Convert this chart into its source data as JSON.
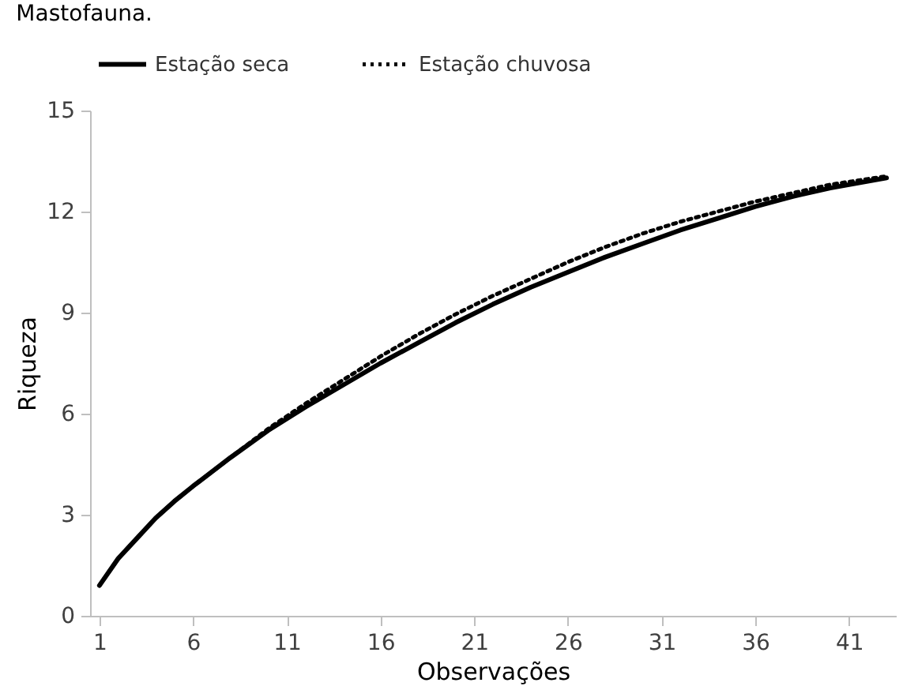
{
  "chart_data": {
    "type": "line",
    "title": "Mastofauna.",
    "xlabel": "Observações",
    "ylabel": "Riqueza",
    "x": [
      1,
      2,
      3,
      4,
      5,
      6,
      8,
      10,
      12,
      14,
      16,
      18,
      20,
      22,
      24,
      26,
      28,
      30,
      32,
      34,
      36,
      38,
      40,
      43
    ],
    "series": [
      {
        "name": "Estação seca",
        "color": "#000000",
        "line_style": "solid",
        "values": [
          0.9,
          1.7,
          2.3,
          2.9,
          3.4,
          3.85,
          4.7,
          5.5,
          6.2,
          6.85,
          7.5,
          8.1,
          8.7,
          9.25,
          9.75,
          10.2,
          10.65,
          11.05,
          11.45,
          11.8,
          12.15,
          12.45,
          12.7,
          13.0
        ]
      },
      {
        "name": "Estação chuvosa",
        "color": "#000000",
        "line_style": "dotted",
        "values": [
          0.9,
          1.7,
          2.3,
          2.9,
          3.4,
          3.85,
          4.7,
          5.55,
          6.3,
          7.0,
          7.7,
          8.35,
          8.95,
          9.5,
          10.0,
          10.5,
          10.95,
          11.35,
          11.7,
          12.0,
          12.3,
          12.55,
          12.8,
          13.05
        ]
      }
    ],
    "xlim": [
      0.5,
      43.5
    ],
    "xticks": [
      1,
      6,
      11,
      16,
      21,
      26,
      31,
      36,
      41
    ],
    "ylim": [
      0,
      15
    ],
    "yticks": [
      0,
      3,
      6,
      9,
      12,
      15
    ],
    "grid": false,
    "legend": "top",
    "marker": "none"
  }
}
